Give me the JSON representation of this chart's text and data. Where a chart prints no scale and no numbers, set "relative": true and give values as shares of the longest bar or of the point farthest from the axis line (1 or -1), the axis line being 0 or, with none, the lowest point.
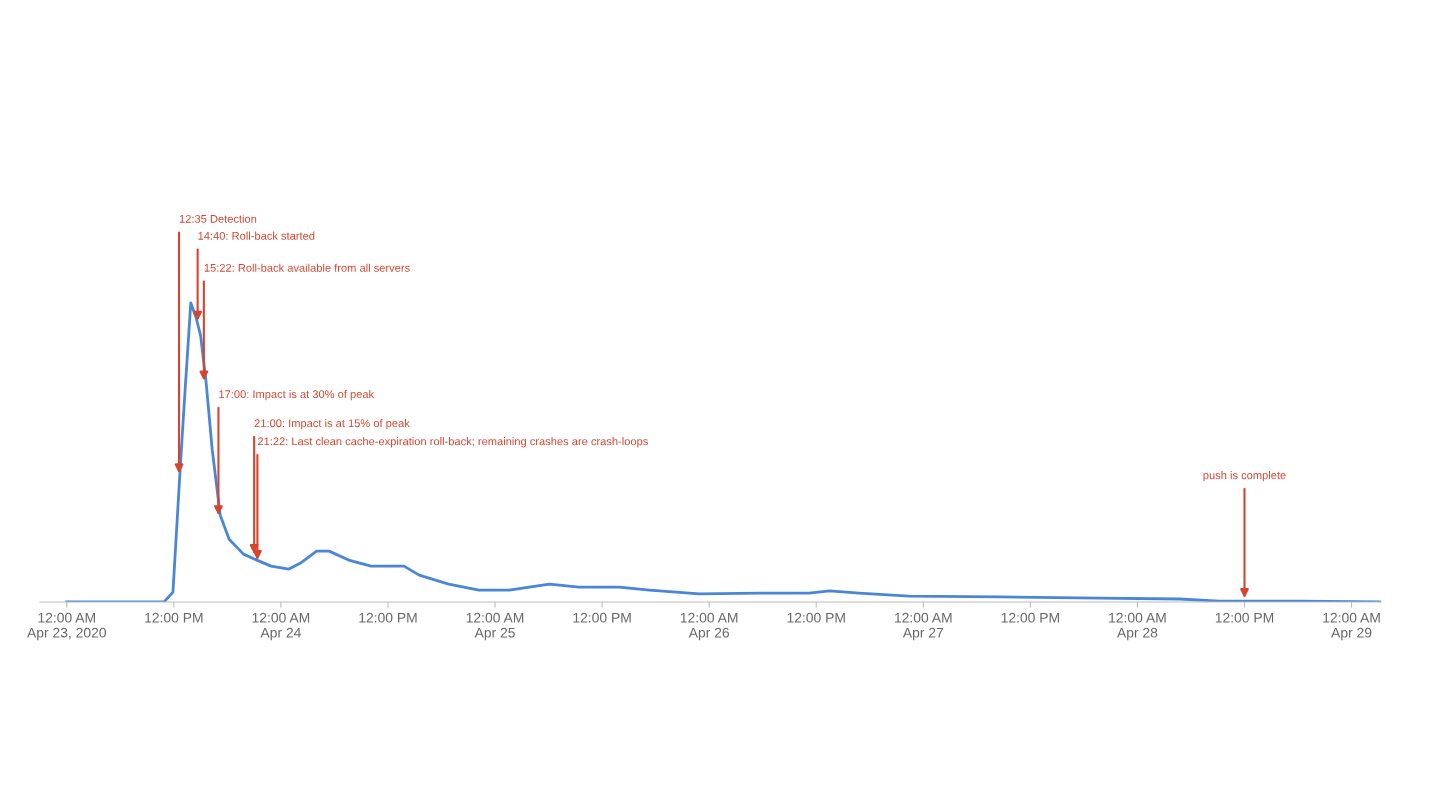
{
  "chart_data": {
    "type": "line",
    "relative": true,
    "x": [
      "2020-04-23T00:00",
      "2020-04-23T10:54",
      "2020-04-23T11:54",
      "2020-04-23T12:42",
      "2020-04-23T13:12",
      "2020-04-23T13:54",
      "2020-04-23T14:30",
      "2020-04-23T15:00",
      "2020-04-23T15:36",
      "2020-04-23T16:18",
      "2020-04-23T17:12",
      "2020-04-23T18:12",
      "2020-04-23T19:48",
      "2020-04-23T21:18",
      "2020-04-23T22:54",
      "2020-04-24T00:54",
      "2020-04-24T02:12",
      "2020-04-24T04:00",
      "2020-04-24T05:24",
      "2020-04-24T07:36",
      "2020-04-24T10:06",
      "2020-04-24T12:06",
      "2020-04-24T13:48",
      "2020-04-24T15:30",
      "2020-04-24T18:48",
      "2020-04-24T22:12",
      "2020-04-25T01:36",
      "2020-04-25T06:06",
      "2020-04-25T09:24",
      "2020-04-25T11:42",
      "2020-04-25T13:54",
      "2020-04-25T17:18",
      "2020-04-25T22:54",
      "2020-04-26T05:36",
      "2020-04-26T11:12",
      "2020-04-26T13:30",
      "2020-04-26T16:48",
      "2020-04-26T22:24",
      "2020-04-27T08:30",
      "2020-04-27T19:42",
      "2020-04-28T04:42",
      "2020-04-28T09:12",
      "2020-04-28T18:12",
      "2020-04-29T03:12"
    ],
    "series": [
      {
        "color": "#4a86d8",
        "values": [
          0,
          0,
          0.033,
          0.44,
          0.68,
          1.0,
          0.95,
          0.89,
          0.74,
          0.51,
          0.29,
          0.21,
          0.16,
          0.14,
          0.12,
          0.11,
          0.13,
          0.17,
          0.17,
          0.14,
          0.12,
          0.12,
          0.12,
          0.09,
          0.06,
          0.04,
          0.04,
          0.06,
          0.05,
          0.05,
          0.05,
          0.04,
          0.027,
          0.03,
          0.03,
          0.037,
          0.03,
          0.02,
          0.017,
          0.013,
          0.01,
          0.003,
          0.003,
          0
        ]
      }
    ],
    "xlim": [
      "2020-04-22T21:00",
      "2020-04-29T03:18"
    ],
    "xticks": [
      {
        "value": "2020-04-23T00:00",
        "label": "12:00 AM\nApr 23, 2020"
      },
      {
        "value": "2020-04-23T12:00",
        "label": "12:00 PM"
      },
      {
        "value": "2020-04-24T00:00",
        "label": "12:00 AM\nApr 24"
      },
      {
        "value": "2020-04-24T12:00",
        "label": "12:00 PM"
      },
      {
        "value": "2020-04-25T00:00",
        "label": "12:00 AM\nApr 25"
      },
      {
        "value": "2020-04-25T12:00",
        "label": "12:00 PM"
      },
      {
        "value": "2020-04-26T00:00",
        "label": "12:00 AM\nApr 26"
      },
      {
        "value": "2020-04-26T12:00",
        "label": "12:00 PM"
      },
      {
        "value": "2020-04-27T00:00",
        "label": "12:00 AM\nApr 27"
      },
      {
        "value": "2020-04-27T12:00",
        "label": "12:00 PM"
      },
      {
        "value": "2020-04-28T00:00",
        "label": "12:00 AM\nApr 28"
      },
      {
        "value": "2020-04-28T12:00",
        "label": "12:00 PM"
      },
      {
        "value": "2020-04-29T00:00",
        "label": "12:00 AM\nApr 29"
      }
    ],
    "annotations": [
      {
        "text": "12:35 Detection",
        "x": "2020-04-23T12:35",
        "y": 0.43
      },
      {
        "text": "14:40: Roll-back started",
        "x": "2020-04-23T14:40",
        "y": 0.94
      },
      {
        "text": "15:22: Roll-back available from all servers",
        "x": "2020-04-23T15:22",
        "y": 0.74
      },
      {
        "text": "17:00: Impact is at 30% of peak",
        "x": "2020-04-23T17:00",
        "y": 0.29
      },
      {
        "text": "21:00: Impact is at 15% of peak",
        "x": "2020-04-23T21:00",
        "y": 0.16
      },
      {
        "text": "21:22: Last clean cache-expiration roll-back; remaining crashes are crash-loops",
        "x": "2020-04-23T21:22",
        "y": 0.14
      },
      {
        "text": "push is complete",
        "x": "2020-04-28T12:00",
        "y": 0.013
      }
    ]
  }
}
